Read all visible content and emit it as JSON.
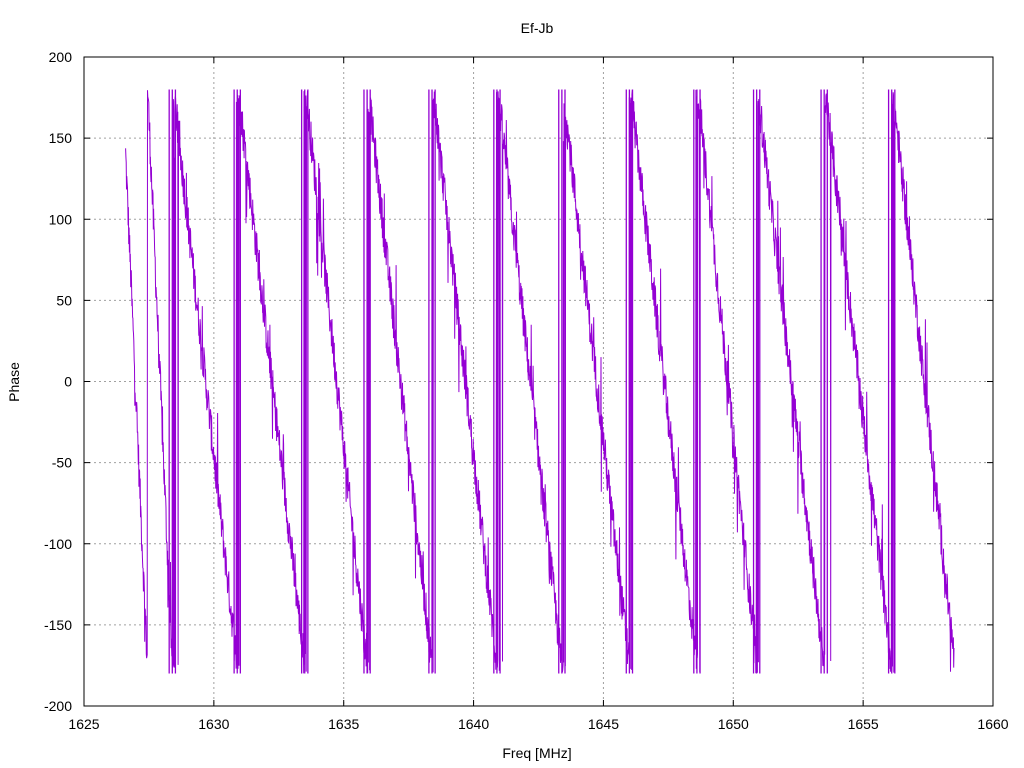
{
  "chart_data": {
    "type": "line",
    "title": "Ef-Jb",
    "xlabel": "Freq [MHz]",
    "ylabel": "Phase",
    "xlim": [
      1625,
      1660
    ],
    "ylim": [
      -200,
      200
    ],
    "xticks": [
      1625,
      1630,
      1635,
      1640,
      1645,
      1650,
      1655,
      1660
    ],
    "yticks": [
      -200,
      -150,
      -100,
      -50,
      0,
      50,
      100,
      150,
      200
    ],
    "grid": true,
    "legend": "none",
    "series": [
      {
        "color": "#9400d3",
        "wrap_limits": [
          -180,
          180
        ],
        "trend_x": [
          1626.6,
          1628.4,
          1630.9,
          1633.5,
          1635.9,
          1638.4,
          1640.9,
          1643.4,
          1646.0,
          1648.6,
          1650.9,
          1653.5,
          1656.1,
          1658.5
        ],
        "trend_y": [
          140,
          -175,
          -175,
          -175,
          -175,
          -175,
          -175,
          -175,
          -175,
          -175,
          -175,
          -175,
          -175,
          -170
        ],
        "wrap_x": [
          1628.4,
          1630.9,
          1633.5,
          1635.9,
          1638.4,
          1640.9,
          1643.4,
          1646.0,
          1648.6,
          1650.9,
          1653.5,
          1656.1
        ],
        "noise_amplitude": 12
      }
    ]
  }
}
